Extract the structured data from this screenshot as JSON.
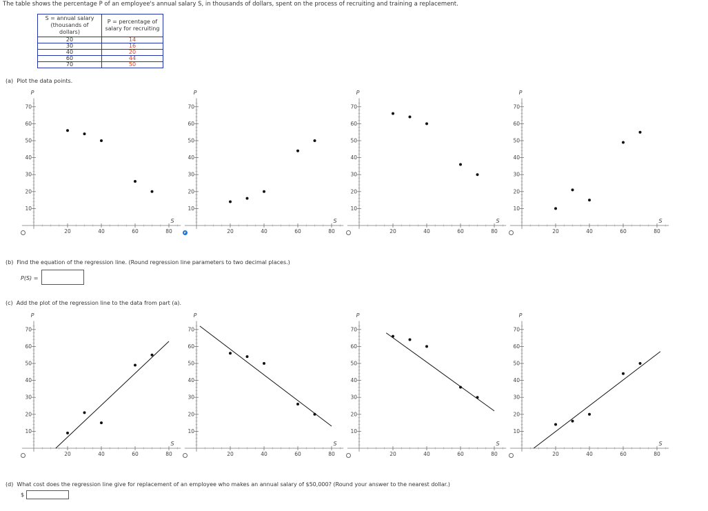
{
  "intro_text": "The table shows the percentage P of an employee's annual salary S, in thousands of dollars, spent on the process of recruiting and training a replacement.",
  "table": {
    "header_s": [
      "S = annual salary",
      "(thousands of dollars)"
    ],
    "header_p": [
      "P = percentage of",
      "salary for recruiting"
    ],
    "rows": [
      {
        "s": "20",
        "p": "14"
      },
      {
        "s": "30",
        "p": "16"
      },
      {
        "s": "40",
        "p": "20"
      },
      {
        "s": "60",
        "p": "44"
      },
      {
        "s": "70",
        "p": "50"
      }
    ]
  },
  "part_a": {
    "label": "(a)",
    "text": "Plot the data points.",
    "selected_option": 1
  },
  "part_b": {
    "label": "(b)",
    "text": "Find the equation of the regression line. (Round regression line parameters to two decimal places.)",
    "input_label": "P(S) =",
    "input_value": ""
  },
  "part_c": {
    "label": "(c)",
    "text": "Add the plot of the regression line to the data from part (a)."
  },
  "part_d": {
    "label": "(d)",
    "text": "What cost does the regression line give for replacement of an employee who makes an annual salary of $50,000? (Round your answer to the nearest dollar.)",
    "currency": "$",
    "input_value": ""
  },
  "axis": {
    "xlabel": "S",
    "ylabel": "P",
    "xticks": [
      "20",
      "40",
      "60",
      "80"
    ],
    "yticks": [
      "10",
      "20",
      "30",
      "40",
      "50",
      "60",
      "70"
    ]
  },
  "chart_data": [
    {
      "type": "scatter",
      "group": "a",
      "option": 1,
      "points": [
        [
          20,
          56
        ],
        [
          30,
          54
        ],
        [
          40,
          50
        ],
        [
          60,
          26
        ],
        [
          70,
          20
        ]
      ]
    },
    {
      "type": "scatter",
      "group": "a",
      "option": 2,
      "points": [
        [
          20,
          14
        ],
        [
          30,
          16
        ],
        [
          40,
          20
        ],
        [
          60,
          44
        ],
        [
          70,
          50
        ]
      ]
    },
    {
      "type": "scatter",
      "group": "a",
      "option": 3,
      "points": [
        [
          20,
          66
        ],
        [
          30,
          64
        ],
        [
          40,
          60
        ],
        [
          60,
          36
        ],
        [
          70,
          30
        ]
      ]
    },
    {
      "type": "scatter",
      "group": "a",
      "option": 4,
      "points": [
        [
          20,
          10
        ],
        [
          30,
          21
        ],
        [
          40,
          15
        ],
        [
          60,
          49
        ],
        [
          70,
          55
        ]
      ]
    },
    {
      "type": "scatter",
      "group": "c",
      "option": 1,
      "points": [
        [
          20,
          9
        ],
        [
          30,
          21
        ],
        [
          40,
          15
        ],
        [
          60,
          49
        ],
        [
          70,
          55
        ]
      ],
      "line": [
        [
          13,
          0
        ],
        [
          80,
          63
        ]
      ]
    },
    {
      "type": "scatter",
      "group": "c",
      "option": 2,
      "points": [
        [
          20,
          56
        ],
        [
          30,
          54
        ],
        [
          40,
          50
        ],
        [
          60,
          26
        ],
        [
          70,
          20
        ]
      ],
      "line": [
        [
          2,
          72
        ],
        [
          80,
          13
        ]
      ]
    },
    {
      "type": "scatter",
      "group": "c",
      "option": 3,
      "points": [
        [
          20,
          66
        ],
        [
          30,
          64
        ],
        [
          40,
          60
        ],
        [
          60,
          36
        ],
        [
          70,
          30
        ]
      ],
      "line": [
        [
          16,
          68
        ],
        [
          80,
          22
        ]
      ]
    },
    {
      "type": "scatter",
      "group": "c",
      "option": 4,
      "points": [
        [
          20,
          14
        ],
        [
          30,
          16
        ],
        [
          40,
          20
        ],
        [
          60,
          44
        ],
        [
          70,
          50
        ]
      ],
      "line": [
        [
          7,
          0
        ],
        [
          82,
          57
        ]
      ]
    }
  ]
}
